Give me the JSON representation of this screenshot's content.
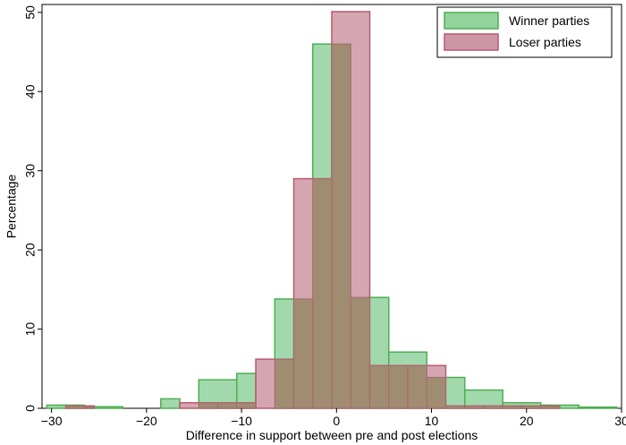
{
  "chart_data": {
    "type": "bar",
    "subtype": "overlaid-histogram",
    "title": "",
    "xlabel": "Difference in support between pre and post elections",
    "ylabel": "Percentage",
    "xlim": [
      -31,
      30
    ],
    "ylim": [
      0,
      51
    ],
    "xticks": [
      -30,
      -20,
      -10,
      0,
      10,
      20,
      30
    ],
    "yticks": [
      0,
      10,
      20,
      30,
      40,
      50
    ],
    "grid": false,
    "legend_position": "top-right",
    "series": [
      {
        "name": "Winner parties",
        "fill": "#92d29d",
        "stroke": "#4caf50",
        "bins": [
          {
            "x0": -30.5,
            "x1": -26.5,
            "value": 0.4
          },
          {
            "x0": -26.5,
            "x1": -22.5,
            "value": 0.2
          },
          {
            "x0": -18.5,
            "x1": -16.5,
            "value": 1.2
          },
          {
            "x0": -14.5,
            "x1": -10.5,
            "value": 3.6
          },
          {
            "x0": -10.5,
            "x1": -8.5,
            "value": 4.4
          },
          {
            "x0": -6.5,
            "x1": -2.5,
            "value": 13.8
          },
          {
            "x0": -2.5,
            "x1": -0.5,
            "value": 46.0
          },
          {
            "x0": -0.5,
            "x1": 1.5,
            "value": 46.0
          },
          {
            "x0": 1.5,
            "x1": 5.5,
            "value": 14.0
          },
          {
            "x0": 5.5,
            "x1": 9.5,
            "value": 7.1
          },
          {
            "x0": 9.5,
            "x1": 13.5,
            "value": 3.9
          },
          {
            "x0": 13.5,
            "x1": 17.5,
            "value": 2.3
          },
          {
            "x0": 17.5,
            "x1": 21.5,
            "value": 0.7
          },
          {
            "x0": 21.5,
            "x1": 25.5,
            "value": 0.4
          },
          {
            "x0": 25.5,
            "x1": 29.5,
            "value": 0.15
          }
        ]
      },
      {
        "name": "Loser parties",
        "fill": "#cd96a4",
        "stroke": "#b85a6e",
        "bins": [
          {
            "x0": -28.5,
            "x1": -25.5,
            "value": 0.3
          },
          {
            "x0": -16.5,
            "x1": -12.5,
            "value": 0.7
          },
          {
            "x0": -12.5,
            "x1": -8.5,
            "value": 0.7
          },
          {
            "x0": -8.5,
            "x1": -4.5,
            "value": 6.2
          },
          {
            "x0": -4.5,
            "x1": -0.5,
            "value": 29.0
          },
          {
            "x0": -0.5,
            "x1": 3.5,
            "value": 50.1
          },
          {
            "x0": 3.5,
            "x1": 7.5,
            "value": 5.4
          },
          {
            "x0": 7.5,
            "x1": 11.5,
            "value": 5.4
          },
          {
            "x0": 11.5,
            "x1": 15.5,
            "value": 0.3
          },
          {
            "x0": 15.5,
            "x1": 19.5,
            "value": 0.3
          },
          {
            "x0": 19.5,
            "x1": 23.5,
            "value": 0.3
          }
        ]
      }
    ],
    "overlap_fill": "#9b8a6b"
  }
}
